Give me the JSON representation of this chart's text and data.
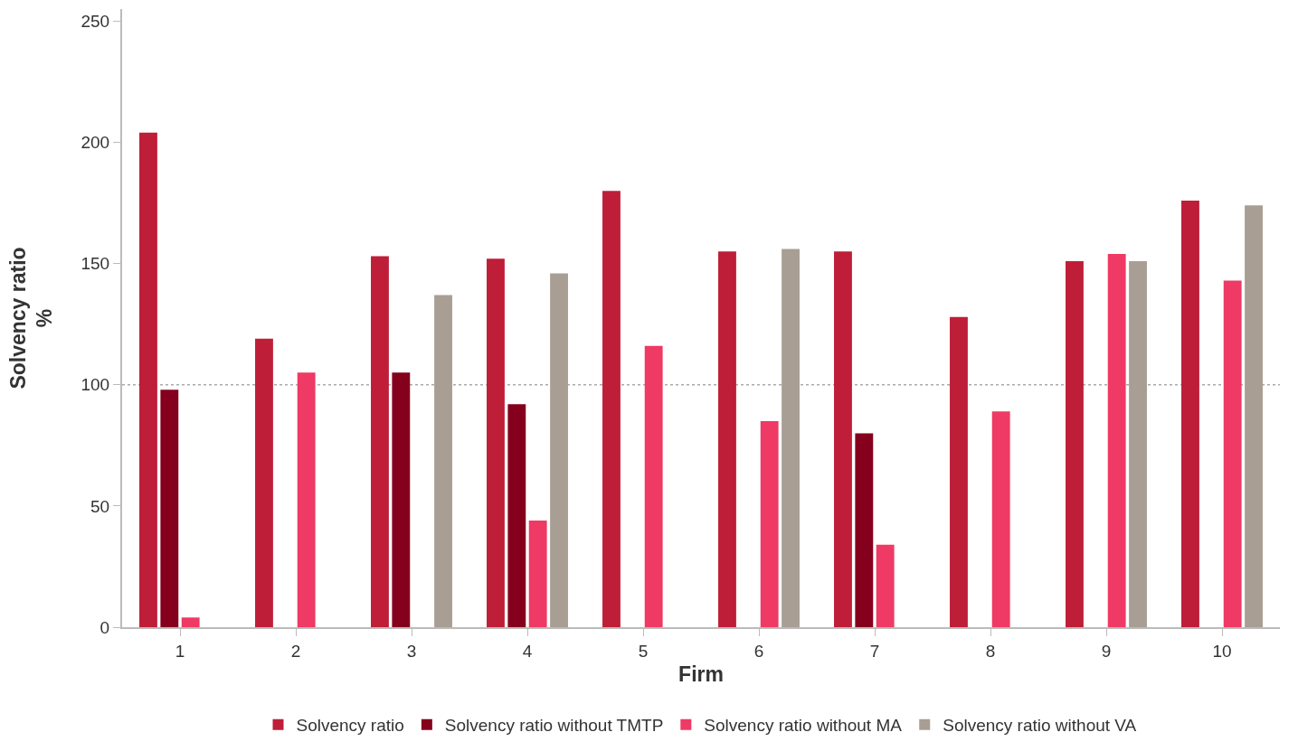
{
  "chart_data": {
    "type": "bar",
    "xlabel": "Firm",
    "ylabel": "Solvency ratio\n%",
    "categories": [
      "1",
      "2",
      "3",
      "4",
      "5",
      "6",
      "7",
      "8",
      "9",
      "10"
    ],
    "series": [
      {
        "name": "Solvency ratio",
        "color": "#be1e37",
        "values": [
          204,
          119,
          153,
          152,
          180,
          155,
          155,
          128,
          151,
          176
        ]
      },
      {
        "name": "Solvency ratio without TMTP",
        "color": "#84001c",
        "values": [
          98,
          null,
          105,
          92,
          null,
          null,
          80,
          null,
          null,
          null
        ]
      },
      {
        "name": "Solvency ratio without MA",
        "color": "#ee3a64",
        "values": [
          4,
          105,
          null,
          44,
          116,
          85,
          34,
          89,
          154,
          143
        ]
      },
      {
        "name": "Solvency ratio without VA",
        "color": "#a89e94",
        "values": [
          null,
          null,
          137,
          146,
          null,
          156,
          null,
          null,
          151,
          174
        ]
      }
    ],
    "ylim": [
      0,
      255
    ],
    "yticks": [
      0,
      50,
      100,
      150,
      200,
      250
    ],
    "ref_lines": [
      {
        "axis": "y",
        "value": 100,
        "color": "#aaaaaa",
        "line_style": "dotted"
      }
    ],
    "legend": "bottom",
    "grid": false
  }
}
